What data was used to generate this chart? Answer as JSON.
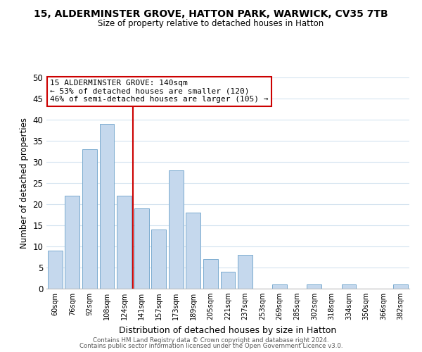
{
  "title1": "15, ALDERMINSTER GROVE, HATTON PARK, WARWICK, CV35 7TB",
  "title2": "Size of property relative to detached houses in Hatton",
  "xlabel": "Distribution of detached houses by size in Hatton",
  "ylabel": "Number of detached properties",
  "bar_labels": [
    "60sqm",
    "76sqm",
    "92sqm",
    "108sqm",
    "124sqm",
    "141sqm",
    "157sqm",
    "173sqm",
    "189sqm",
    "205sqm",
    "221sqm",
    "237sqm",
    "253sqm",
    "269sqm",
    "285sqm",
    "302sqm",
    "318sqm",
    "334sqm",
    "350sqm",
    "366sqm",
    "382sqm"
  ],
  "bar_values": [
    9,
    22,
    33,
    39,
    22,
    19,
    14,
    28,
    18,
    7,
    4,
    8,
    0,
    1,
    0,
    1,
    0,
    1,
    0,
    0,
    1
  ],
  "bar_color": "#c5d8ed",
  "bar_edge_color": "#7aabcf",
  "ylim": [
    0,
    50
  ],
  "yticks": [
    0,
    5,
    10,
    15,
    20,
    25,
    30,
    35,
    40,
    45,
    50
  ],
  "vline_pos": 4.5,
  "vline_color": "#cc0000",
  "annotation_line1": "15 ALDERMINSTER GROVE: 140sqm",
  "annotation_line2": "← 53% of detached houses are smaller (120)",
  "annotation_line3": "46% of semi-detached houses are larger (105) →",
  "annotation_box_color": "#cc0000",
  "footer1": "Contains HM Land Registry data © Crown copyright and database right 2024.",
  "footer2": "Contains public sector information licensed under the Open Government Licence v3.0.",
  "background_color": "#ffffff",
  "grid_color": "#d5e4f0"
}
